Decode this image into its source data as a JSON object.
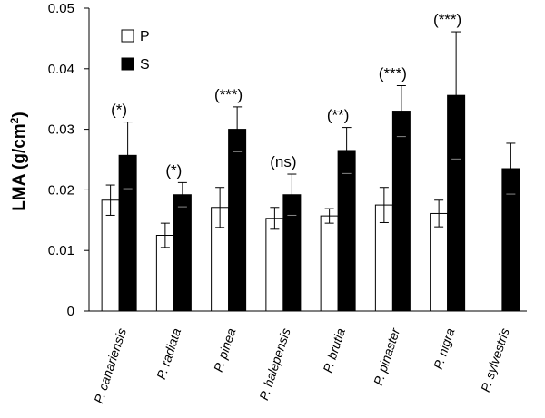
{
  "chart_data": {
    "type": "bar",
    "ylabel": "LMA (g/cm",
    "ylabel_sup": "2",
    "ylabel_close": ")",
    "ylim": [
      0,
      0.05
    ],
    "yticks": [
      "0",
      "0.01",
      "0.02",
      "0.03",
      "0.04",
      "0.05"
    ],
    "ytick_values": [
      0,
      0.01,
      0.02,
      0.03,
      0.04,
      0.05
    ],
    "grid": false,
    "legend_position": "top-left",
    "categories": [
      "P. canariensis",
      "P. radiata",
      "P. pinea",
      "P. halepensis",
      "P. brutia",
      "P. pinaster",
      "P. nigra",
      "P. sylvestris"
    ],
    "series": [
      {
        "name": "P",
        "color": "#ffffff",
        "values": [
          0.0183,
          0.0125,
          0.0171,
          0.0153,
          0.0157,
          0.0175,
          0.0161,
          null
        ],
        "errors": [
          0.0025,
          0.002,
          0.0033,
          0.0018,
          0.0012,
          0.0029,
          0.0022,
          null
        ]
      },
      {
        "name": "S",
        "color": "#000000",
        "values": [
          0.0257,
          0.0192,
          0.03,
          0.0192,
          0.0265,
          0.033,
          0.0356,
          0.0235
        ],
        "errors": [
          0.0055,
          0.002,
          0.0037,
          0.0034,
          0.0038,
          0.0042,
          0.0105,
          0.0042
        ]
      }
    ],
    "significance": [
      "(*)",
      "(*)",
      "(***)",
      "(ns)",
      "(**)",
      "(***)",
      "(***)",
      ""
    ]
  }
}
